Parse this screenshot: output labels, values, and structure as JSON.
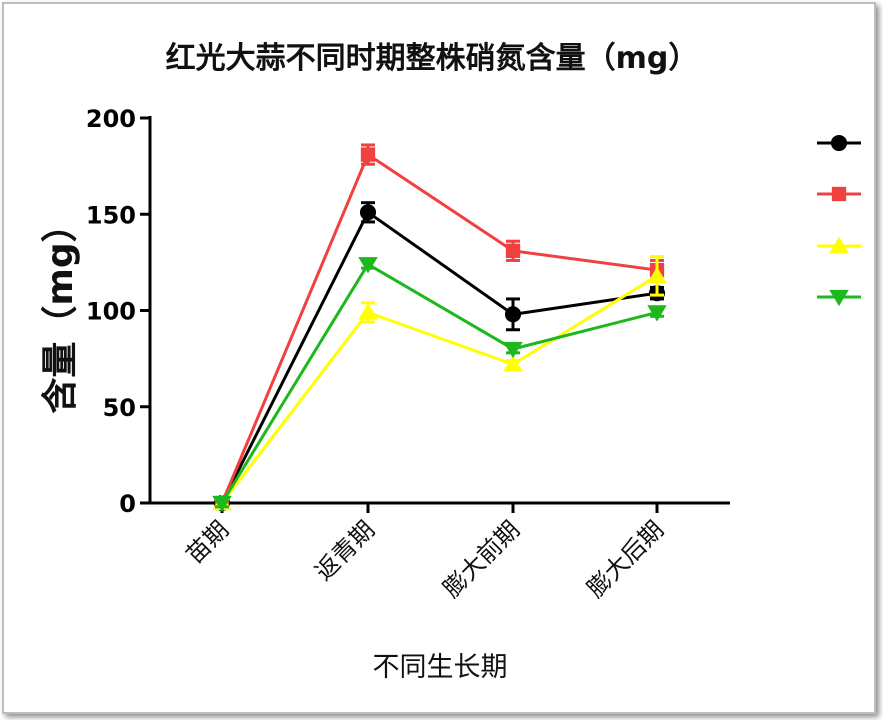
{
  "chart_data": {
    "type": "line",
    "title": "红光大蒜不同时期整株硝氮含量（mg）",
    "xlabel": "不同生长期",
    "ylabel": "含量（mg）",
    "categories": [
      "苗期",
      "返青期",
      "膨大前期",
      "膨大后期"
    ],
    "ylim": [
      0,
      200
    ],
    "yticks": [
      0,
      50,
      100,
      150,
      200
    ],
    "grid": false,
    "legend_placement": "right",
    "series": [
      {
        "marker": "circle",
        "color": "#000000",
        "values": [
          0,
          151,
          98,
          109
        ],
        "errors": [
          2,
          5,
          8,
          3
        ]
      },
      {
        "marker": "square",
        "color": "#f04040",
        "values": [
          0,
          181,
          131,
          121
        ],
        "errors": [
          2,
          5,
          5,
          5
        ]
      },
      {
        "marker": "triangle-up",
        "color": "#ffff00",
        "values": [
          0,
          99,
          72,
          118
        ],
        "errors": [
          2,
          5,
          2,
          10
        ]
      },
      {
        "marker": "triangle-down",
        "color": "#1cb81c",
        "values": [
          0,
          124,
          80,
          99
        ],
        "errors": [
          2,
          2,
          2,
          2
        ]
      }
    ]
  }
}
